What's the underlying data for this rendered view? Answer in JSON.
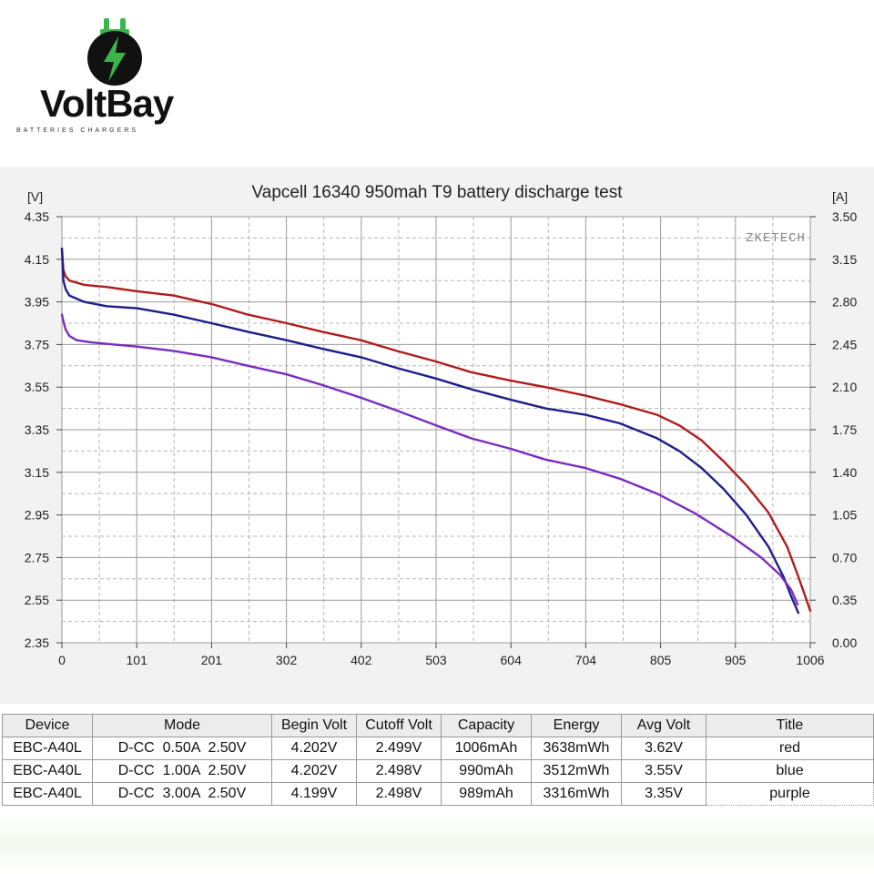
{
  "logo": {
    "brand": "VoltBay",
    "tagline": "BATTERIES CHARGERS",
    "icon": "plug-lightning-icon"
  },
  "chart_data": {
    "type": "line",
    "title": "Vapcell 16340 950mah T9 battery discharge test",
    "ylabel_left": "[V]",
    "ylabel_right": "[A]",
    "xlabel": "",
    "watermark": "ZKETECH",
    "grid": true,
    "ylim_left": [
      2.35,
      4.35
    ],
    "ylim_right": [
      0.0,
      3.5
    ],
    "xlim": [
      0,
      1006
    ],
    "x_ticks": [
      "0",
      "101",
      "201",
      "302",
      "402",
      "503",
      "604",
      "704",
      "805",
      "905",
      "1006"
    ],
    "y_ticks_left": [
      "4.35",
      "4.15",
      "3.95",
      "3.75",
      "3.55",
      "3.35",
      "3.15",
      "2.95",
      "2.75",
      "2.55",
      "2.35"
    ],
    "y_ticks_right": [
      "3.50",
      "3.15",
      "2.80",
      "2.45",
      "2.10",
      "1.75",
      "1.40",
      "1.05",
      "0.70",
      "0.35",
      "0.00"
    ],
    "series": [
      {
        "name": "red",
        "color": "#b01c1c",
        "x": [
          0,
          2,
          5,
          10,
          30,
          60,
          101,
          150,
          201,
          250,
          302,
          350,
          402,
          450,
          503,
          550,
          604,
          650,
          704,
          750,
          800,
          830,
          860,
          890,
          920,
          950,
          975,
          990,
          1000,
          1006
        ],
        "y": [
          4.2,
          4.1,
          4.07,
          4.05,
          4.03,
          4.02,
          4.0,
          3.98,
          3.94,
          3.89,
          3.85,
          3.81,
          3.77,
          3.72,
          3.67,
          3.62,
          3.58,
          3.55,
          3.51,
          3.47,
          3.42,
          3.37,
          3.3,
          3.2,
          3.09,
          2.96,
          2.8,
          2.66,
          2.56,
          2.5
        ]
      },
      {
        "name": "blue",
        "color": "#1e1e8c",
        "x": [
          0,
          2,
          5,
          10,
          30,
          60,
          101,
          150,
          201,
          250,
          302,
          350,
          402,
          450,
          503,
          550,
          604,
          650,
          704,
          750,
          800,
          830,
          860,
          890,
          920,
          950,
          970,
          980,
          990
        ],
        "y": [
          4.2,
          4.05,
          4.01,
          3.98,
          3.95,
          3.93,
          3.92,
          3.89,
          3.85,
          3.81,
          3.77,
          3.73,
          3.69,
          3.64,
          3.59,
          3.54,
          3.49,
          3.45,
          3.42,
          3.38,
          3.31,
          3.25,
          3.17,
          3.07,
          2.95,
          2.8,
          2.66,
          2.57,
          2.49
        ]
      },
      {
        "name": "purple",
        "color": "#7a2cc0",
        "x": [
          0,
          2,
          5,
          10,
          20,
          40,
          70,
          101,
          150,
          201,
          250,
          302,
          350,
          402,
          450,
          503,
          550,
          604,
          650,
          704,
          750,
          800,
          850,
          900,
          940,
          965,
          980,
          989
        ],
        "y": [
          3.89,
          3.86,
          3.82,
          3.79,
          3.77,
          3.76,
          3.75,
          3.74,
          3.72,
          3.69,
          3.65,
          3.61,
          3.56,
          3.5,
          3.44,
          3.37,
          3.31,
          3.26,
          3.21,
          3.17,
          3.12,
          3.05,
          2.96,
          2.85,
          2.75,
          2.67,
          2.6,
          2.53
        ]
      }
    ]
  },
  "table": {
    "headers": [
      "Device",
      "Mode",
      "Begin Volt",
      "Cutoff Volt",
      "Capacity",
      "Energy",
      "Avg Volt",
      "Title"
    ],
    "rows": [
      [
        "EBC-A40L",
        "D-CC  0.50A  2.50V",
        "4.202V",
        "2.499V",
        "1006mAh",
        "3638mWh",
        "3.62V",
        "red"
      ],
      [
        "EBC-A40L",
        "D-CC  1.00A  2.50V",
        "4.202V",
        "2.498V",
        "990mAh",
        "3512mWh",
        "3.55V",
        "blue"
      ],
      [
        "EBC-A40L",
        "D-CC  3.00A  2.50V",
        "4.199V",
        "2.498V",
        "989mAh",
        "3316mWh",
        "3.35V",
        "purple"
      ]
    ]
  }
}
